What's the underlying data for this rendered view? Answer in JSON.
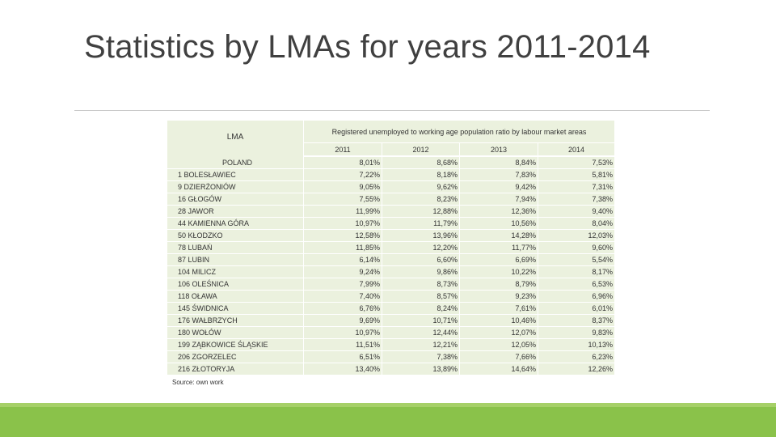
{
  "slide": {
    "title": "Statistics by LMAs for years 2011-2014"
  },
  "table": {
    "lma_header": "LMA",
    "ratio_header": "Registered unemployed to working age population ratio by labour market areas",
    "years": [
      "2011",
      "2012",
      "2013",
      "2014"
    ],
    "rows": [
      {
        "lma": "POLAND",
        "v2011": "8,01%",
        "v2012": "8,68%",
        "v2013": "8,84%",
        "v2014": "7,53%"
      },
      {
        "lma": "1 BOLESŁAWIEC",
        "v2011": "7,22%",
        "v2012": "8,18%",
        "v2013": "7,83%",
        "v2014": "5,81%"
      },
      {
        "lma": "9 DZIERŻONIÓW",
        "v2011": "9,05%",
        "v2012": "9,62%",
        "v2013": "9,42%",
        "v2014": "7,31%"
      },
      {
        "lma": "16 GŁOGÓW",
        "v2011": "7,55%",
        "v2012": "8,23%",
        "v2013": "7,94%",
        "v2014": "7,38%"
      },
      {
        "lma": "28 JAWOR",
        "v2011": "11,99%",
        "v2012": "12,88%",
        "v2013": "12,36%",
        "v2014": "9,40%"
      },
      {
        "lma": "44 KAMIENNA GÓRA",
        "v2011": "10,97%",
        "v2012": "11,79%",
        "v2013": "10,56%",
        "v2014": "8,04%"
      },
      {
        "lma": "50 KŁODZKO",
        "v2011": "12,58%",
        "v2012": "13,96%",
        "v2013": "14,28%",
        "v2014": "12,03%"
      },
      {
        "lma": "78 LUBAŃ",
        "v2011": "11,85%",
        "v2012": "12,20%",
        "v2013": "11,77%",
        "v2014": "9,60%"
      },
      {
        "lma": "87 LUBIN",
        "v2011": "6,14%",
        "v2012": "6,60%",
        "v2013": "6,69%",
        "v2014": "5,54%"
      },
      {
        "lma": "104 MILICZ",
        "v2011": "9,24%",
        "v2012": "9,86%",
        "v2013": "10,22%",
        "v2014": "8,17%"
      },
      {
        "lma": "106 OLEŚNICA",
        "v2011": "7,99%",
        "v2012": "8,73%",
        "v2013": "8,79%",
        "v2014": "6,53%"
      },
      {
        "lma": "118 OŁAWA",
        "v2011": "7,40%",
        "v2012": "8,57%",
        "v2013": "9,23%",
        "v2014": "6,96%"
      },
      {
        "lma": "145 ŚWIDNICA",
        "v2011": "6,76%",
        "v2012": "8,24%",
        "v2013": "7,61%",
        "v2014": "6,01%"
      },
      {
        "lma": "176 WAŁBRZYCH",
        "v2011": "9,69%",
        "v2012": "10,71%",
        "v2013": "10,46%",
        "v2014": "8,37%"
      },
      {
        "lma": "180 WOŁÓW",
        "v2011": "10,97%",
        "v2012": "12,44%",
        "v2013": "12,07%",
        "v2014": "9,83%"
      },
      {
        "lma": "199 ZĄBKOWICE ŚLĄSKIE",
        "v2011": "11,51%",
        "v2012": "12,21%",
        "v2013": "12,05%",
        "v2014": "10,13%"
      },
      {
        "lma": "206 ZGORZELEC",
        "v2011": "6,51%",
        "v2012": "7,38%",
        "v2013": "7,66%",
        "v2014": "6,23%"
      },
      {
        "lma": "216 ZŁOTORYJA",
        "v2011": "13,40%",
        "v2012": "13,89%",
        "v2013": "14,64%",
        "v2014": "12,26%"
      }
    ],
    "source": "Source: own work"
  },
  "colors": {
    "cell_fill": "#ebf1de",
    "footer_bar": "#8ac24a"
  }
}
